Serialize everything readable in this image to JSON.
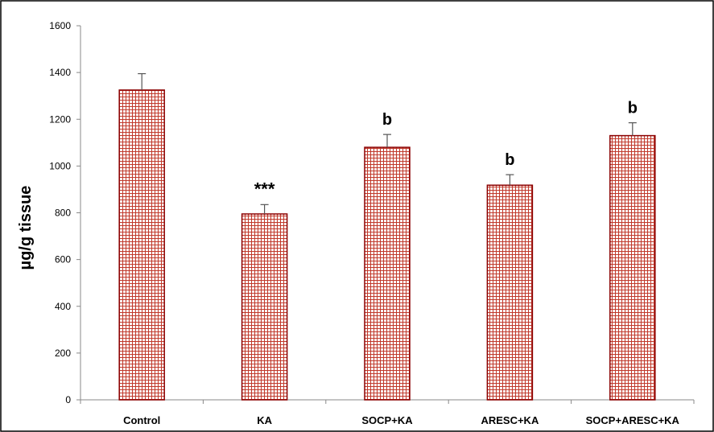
{
  "chart_data": {
    "type": "bar",
    "title": "",
    "xlabel": "",
    "ylabel": "µg/g tissue",
    "ylim": [
      0,
      1600
    ],
    "yticks": [
      0,
      200,
      400,
      600,
      800,
      1000,
      1200,
      1400,
      1600
    ],
    "grid": false,
    "legend": "none",
    "categories": [
      "Control",
      "KA",
      "SOCP+KA",
      "ARESC+KA",
      "SOCP+ARESC+KA"
    ],
    "values": [
      1325,
      795,
      1080,
      918,
      1130
    ],
    "errors": [
      70,
      40,
      55,
      45,
      55
    ],
    "annotations": [
      "",
      "***",
      "b",
      "b",
      "b"
    ],
    "colors": {
      "bar_fill": "#ffffff",
      "bar_pattern": "#c0392b",
      "bar_outline": "#8b0000",
      "error_bar": "#555555",
      "axis": "#888888",
      "frame": "#000000",
      "text": "#000000"
    },
    "bar_style": "red grid-hatched pattern"
  }
}
